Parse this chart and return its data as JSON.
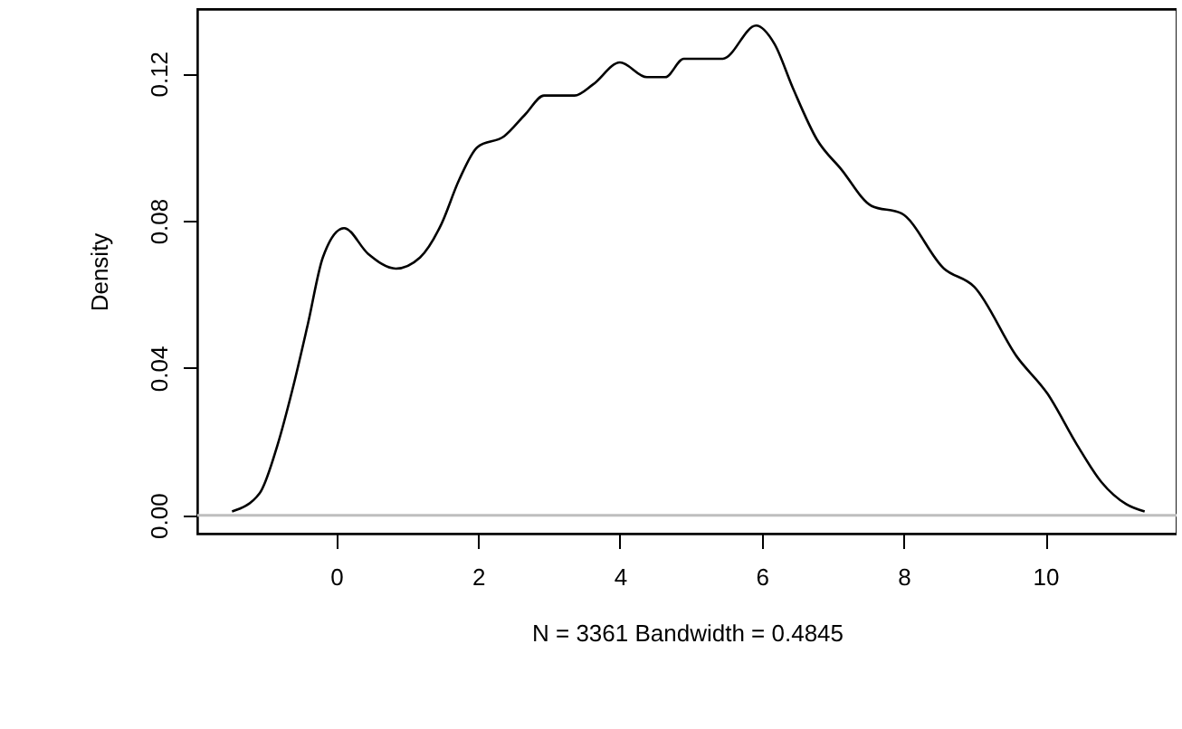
{
  "chart_data": {
    "type": "line",
    "xlabel": "N = 3361   Bandwidth = 0.4845",
    "ylabel": "Density",
    "x": [
      -1.47,
      -1.08,
      -0.83,
      -0.62,
      -0.4,
      -0.19,
      0.11,
      0.45,
      0.84,
      1.18,
      1.48,
      1.73,
      1.99,
      2.37,
      2.67,
      2.93,
      3.36,
      3.62,
      4.0,
      4.38,
      4.64,
      4.9,
      5.45,
      5.92,
      6.18,
      6.44,
      6.78,
      7.12,
      7.55,
      7.97,
      8.57,
      9.0,
      9.6,
      10.03,
      10.45,
      10.79,
      11.14,
      11.4
    ],
    "series": [
      {
        "color": "#000000",
        "values": [
          0.001,
          0.006,
          0.019,
          0.034,
          0.052,
          0.07,
          0.078,
          0.071,
          0.067,
          0.07,
          0.079,
          0.091,
          0.1,
          0.103,
          0.109,
          0.114,
          0.114,
          0.117,
          0.123,
          0.119,
          0.119,
          0.124,
          0.124,
          0.133,
          0.128,
          0.116,
          0.102,
          0.094,
          0.084,
          0.082,
          0.067,
          0.062,
          0.043,
          0.033,
          0.019,
          0.009,
          0.003,
          0.001
        ]
      }
    ],
    "xlim": [
      -1.96,
      11.85
    ],
    "ylim": [
      -0.005,
      0.1375
    ],
    "xticks": [
      0,
      2,
      4,
      6,
      8,
      10
    ],
    "yticks": [
      {
        "value": 0,
        "label": "0.00"
      },
      {
        "value": 0.04,
        "label": "0.04"
      },
      {
        "value": 0.08,
        "label": "0.08"
      },
      {
        "value": 0.12,
        "label": "0.12"
      }
    ],
    "ref_lines": [
      {
        "axis": "y",
        "value": 0,
        "color": "#bebebe"
      }
    ],
    "grid": false,
    "marker": "none",
    "line_style": "solid"
  }
}
